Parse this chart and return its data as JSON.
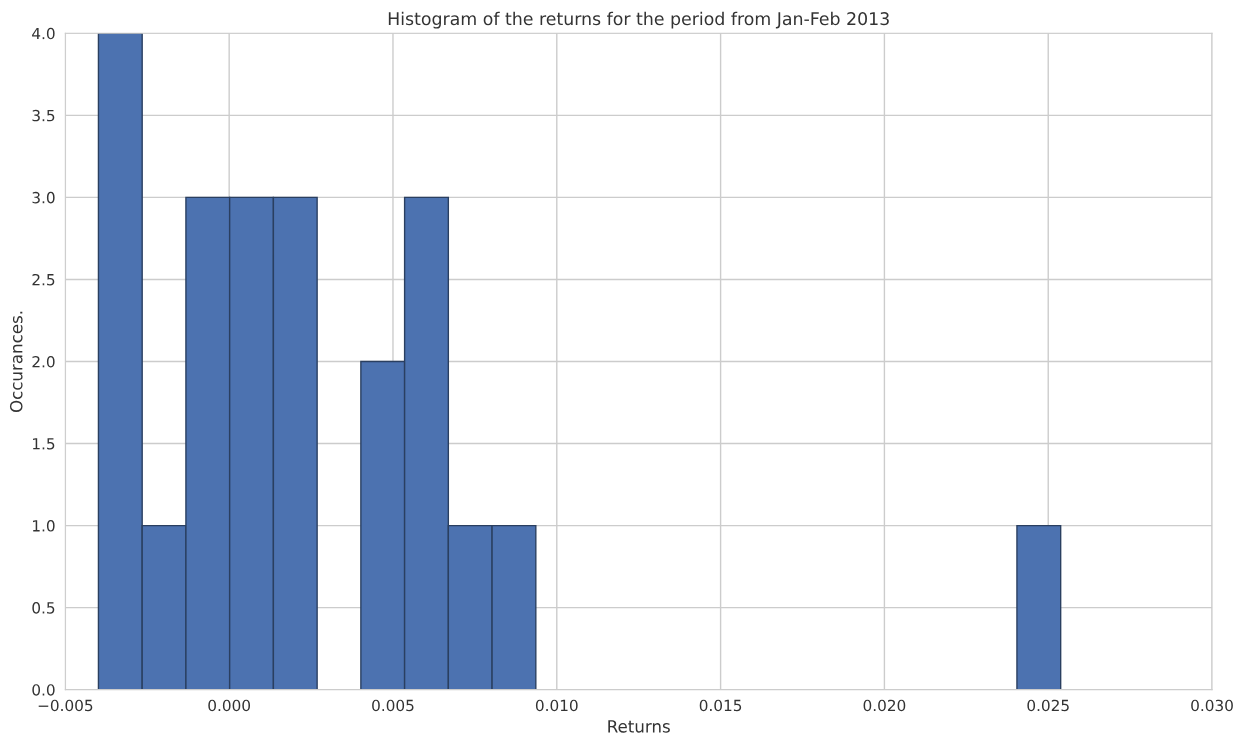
{
  "chart_data": {
    "type": "histogram",
    "title": "Histogram of the returns for the period from Jan-Feb 2013",
    "xlabel": "Returns",
    "ylabel": "Occurances.",
    "bins": [
      -0.00399,
      -0.002655,
      -0.00132,
      1.5e-05,
      0.00135,
      0.002685,
      0.00402,
      0.005355,
      0.00669,
      0.008025,
      0.00936,
      0.010695,
      0.01203,
      0.013365,
      0.0147,
      0.016035,
      0.01737,
      0.018705,
      0.02004,
      0.021375,
      0.02271,
      0.024045,
      0.02538
    ],
    "values": [
      4,
      1,
      3,
      3,
      3,
      0,
      2,
      3,
      1,
      1,
      0,
      0,
      0,
      0,
      0,
      0,
      0,
      0,
      0,
      0,
      0,
      1
    ],
    "color": "#4c72b0",
    "xlim": [
      -0.005,
      0.03
    ],
    "xticks": [
      {
        "value": -0.005,
        "label": "−0.005"
      },
      {
        "value": 0.0,
        "label": "0.000"
      },
      {
        "value": 0.005,
        "label": "0.005"
      },
      {
        "value": 0.01,
        "label": "0.010"
      },
      {
        "value": 0.015,
        "label": "0.015"
      },
      {
        "value": 0.02,
        "label": "0.020"
      },
      {
        "value": 0.025,
        "label": "0.025"
      },
      {
        "value": 0.03,
        "label": "0.030"
      }
    ],
    "ylim": [
      0,
      4
    ],
    "yticks": [
      {
        "value": 0,
        "label": "0.0"
      },
      {
        "value": 0.5,
        "label": "0.5"
      },
      {
        "value": 1,
        "label": "1.0"
      },
      {
        "value": 1.5,
        "label": "1.5"
      },
      {
        "value": 2,
        "label": "2.0"
      },
      {
        "value": 2.5,
        "label": "2.5"
      },
      {
        "value": 3,
        "label": "3.0"
      },
      {
        "value": 3.5,
        "label": "3.5"
      },
      {
        "value": 4,
        "label": "4.0"
      }
    ],
    "grid": true
  }
}
